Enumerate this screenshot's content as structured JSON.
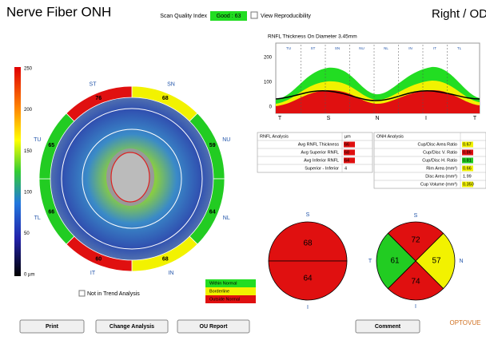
{
  "header": {
    "title": "Nerve Fiber ONH",
    "quality_label": "Scan Quality Index",
    "quality_value": "Good : 63",
    "reproducibility": "View Reproducibility",
    "eye": "Right / OD"
  },
  "colorbar": {
    "labels": [
      "250",
      "200",
      "150",
      "100",
      "50",
      "0 µm"
    ]
  },
  "map": {
    "sectors": [
      {
        "label": "SN",
        "value": "68",
        "color": "#f2f200",
        "from": 45,
        "to": 90
      },
      {
        "label": "NU",
        "value": "59",
        "color": "#22cc22",
        "from": 0,
        "to": 45
      },
      {
        "label": "NL",
        "value": "64",
        "color": "#22cc22",
        "from": -45,
        "to": 0
      },
      {
        "label": "IN",
        "value": "68",
        "color": "#f2f200",
        "from": -90,
        "to": -45
      },
      {
        "label": "IT",
        "value": "60",
        "color": "#e01010",
        "from": -135,
        "to": -90
      },
      {
        "label": "TL",
        "value": "66",
        "color": "#22cc22",
        "from": -180,
        "to": -135
      },
      {
        "label": "TU",
        "value": "65",
        "color": "#22cc22",
        "from": 135,
        "to": 180
      },
      {
        "label": "ST",
        "value": "76",
        "color": "#e01010",
        "from": 90,
        "to": 135
      }
    ],
    "trend": "Not in Trend Analysis"
  },
  "legend": [
    {
      "label": "Within Normal",
      "color": "#22dd22"
    },
    {
      "label": "Borderline",
      "color": "#f2f200"
    },
    {
      "label": "Outside Normal",
      "color": "#e01010"
    }
  ],
  "graph": {
    "title": "RNFL Thickness On Diameter 3.45mm",
    "yticks": [
      "200",
      "100",
      "0"
    ],
    "xticks": [
      "T",
      "S",
      "N",
      "I",
      "T"
    ],
    "segments": [
      "TU",
      "ST",
      "SN",
      "NU",
      "NL",
      "IN",
      "IT",
      "TL"
    ]
  },
  "rnfl_table": {
    "header": [
      "RNFL Analysis",
      "µm"
    ],
    "rows": [
      {
        "label": "Avg RNFL Thickness",
        "value": "66",
        "color": "#e01010"
      },
      {
        "label": "Avg Superior RNFL",
        "value": "68",
        "color": "#e01010"
      },
      {
        "label": "Avg Inferior RNFL",
        "value": "64",
        "color": "#e01010"
      },
      {
        "label": "Superior - Inferior",
        "value": "4"
      }
    ]
  },
  "onh_table": {
    "header": [
      "ONH Analysis"
    ],
    "rows": [
      {
        "label": "Cup/Disc Area Ratio",
        "value": "0.67",
        "color": "#f2f200"
      },
      {
        "label": "Cup/Disc V. Ratio",
        "value": "0.86",
        "color": "#e01010"
      },
      {
        "label": "Cup/Disc H. Ratio",
        "value": "0.81",
        "color": "#22cc22"
      },
      {
        "label": "Rim Area (mm²)",
        "value": "0.66",
        "color": "#f2f200"
      },
      {
        "label": "Disc Area (mm²)",
        "value": "1.99"
      },
      {
        "label": "Cup Volume (mm³)",
        "value": "0.350",
        "color": "#f2f200"
      }
    ]
  },
  "hemispheres": {
    "labels": [
      "S",
      "I"
    ],
    "values": [
      "68",
      "64"
    ],
    "colors": [
      "#e01010",
      "#e01010"
    ]
  },
  "quadrants": {
    "labels": [
      "S",
      "T",
      "N",
      "I"
    ],
    "values": [
      "72",
      "61",
      "57",
      "74"
    ],
    "colors": [
      "#e01010",
      "#22cc22",
      "#f2f200",
      "#e01010"
    ],
    "angles": [
      90,
      180,
      0,
      -90
    ]
  },
  "buttons": [
    "Print",
    "Change Analysis",
    "OU Report",
    "Comment"
  ],
  "logo": "OPTOVUE"
}
